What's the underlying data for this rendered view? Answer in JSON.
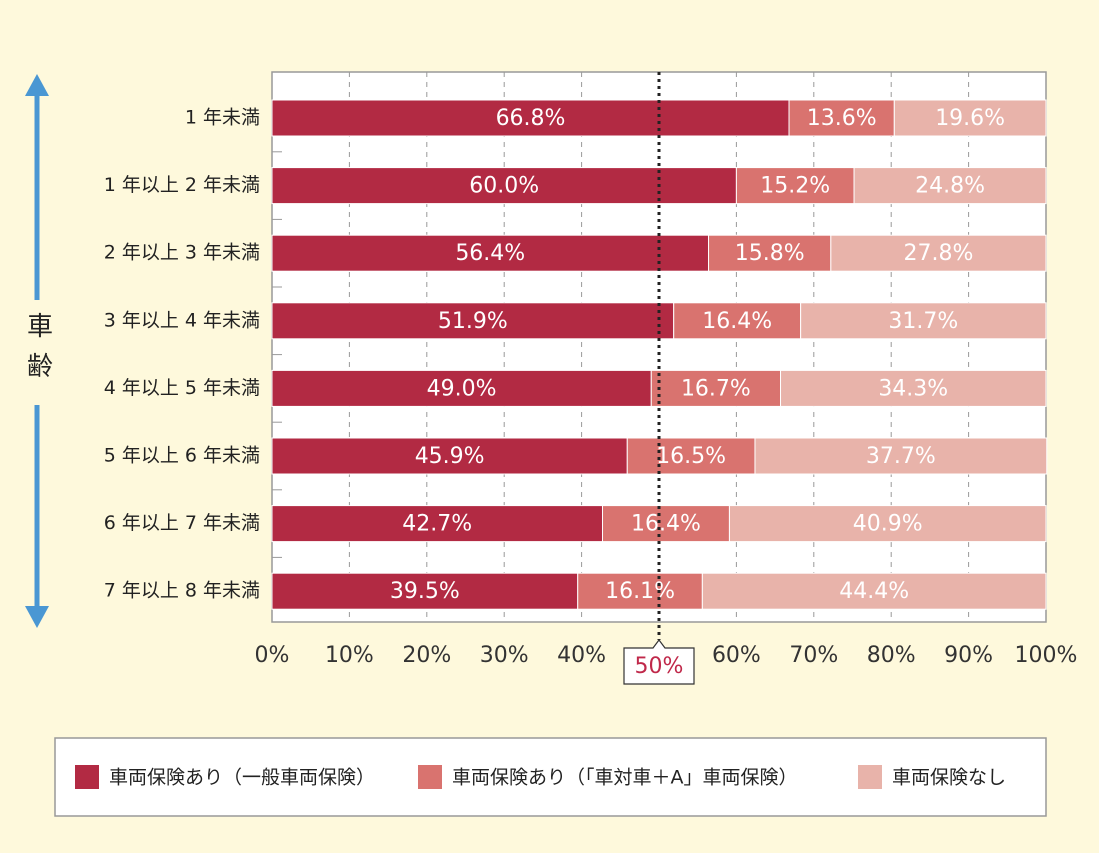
{
  "chart_data": {
    "type": "stacked_bar_horizontal",
    "y_label": "車齢",
    "categories": [
      "1 年未満",
      "1 年以上 2 年未満",
      "2 年以上 3 年未満",
      "3 年以上 4 年未満",
      "4 年以上 5 年未満",
      "5 年以上 6 年未満",
      "6 年以上 7 年未満",
      "7 年以上 8 年未満"
    ],
    "series": [
      {
        "name": "車両保険あり（一般車両保険）",
        "color": "#b22a43",
        "values": [
          66.8,
          60.0,
          56.4,
          51.9,
          49.0,
          45.9,
          42.7,
          39.5
        ],
        "value_labels": [
          "66.8%",
          "60.0%",
          "56.4%",
          "51.9%",
          "49.0%",
          "45.9%",
          "42.7%",
          "39.5%"
        ]
      },
      {
        "name": "車両保険あり（「車対車＋A」車両保険）",
        "color": "#d9736f",
        "values": [
          13.6,
          15.2,
          15.8,
          16.4,
          16.7,
          16.5,
          16.4,
          16.1
        ],
        "value_labels": [
          "13.6%",
          "15.2%",
          "15.8%",
          "16.4%",
          "16.7%",
          "16.5%",
          "16.4%",
          "16.1%"
        ]
      },
      {
        "name": "車両保険なし",
        "color": "#e8b3aa",
        "values": [
          19.6,
          24.8,
          27.8,
          31.7,
          34.3,
          37.7,
          40.9,
          44.4
        ],
        "value_labels": [
          "19.6%",
          "24.8%",
          "27.8%",
          "31.7%",
          "34.3%",
          "37.7%",
          "40.9%",
          "44.4%"
        ]
      }
    ],
    "xlim": [
      0,
      100
    ],
    "xticks": [
      {
        "value": 0,
        "label": "0%"
      },
      {
        "value": 10,
        "label": "10%"
      },
      {
        "value": 20,
        "label": "20%"
      },
      {
        "value": 30,
        "label": "30%"
      },
      {
        "value": 40,
        "label": "40%"
      },
      {
        "value": 60,
        "label": "60%"
      },
      {
        "value": 70,
        "label": "70%"
      },
      {
        "value": 80,
        "label": "80%"
      },
      {
        "value": 90,
        "label": "90%"
      },
      {
        "value": 100,
        "label": "100%"
      }
    ],
    "annotation": {
      "value": 50,
      "label": "50%"
    },
    "grid": true,
    "legend": "bottom"
  }
}
